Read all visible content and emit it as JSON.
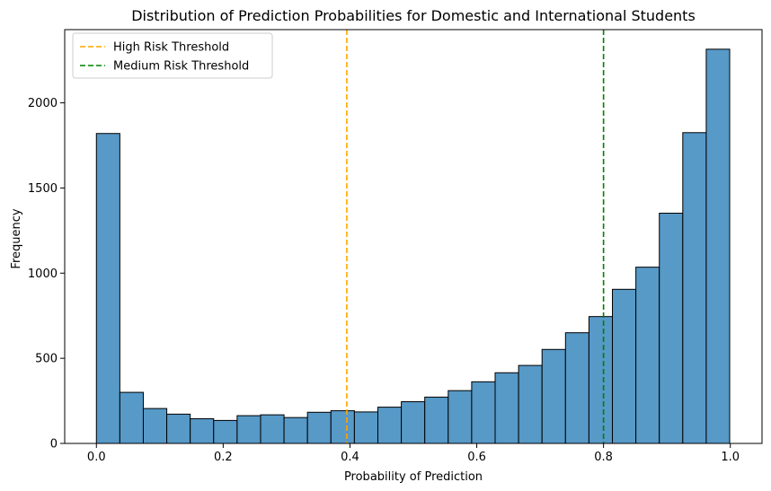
{
  "chart_data": {
    "type": "bar",
    "title": "Distribution of Prediction Probabilities for Domestic and International Students",
    "xlabel": "Probability of Prediction",
    "ylabel": "Frequency",
    "xlim": [
      -0.05,
      1.05
    ],
    "ylim": [
      0,
      2430
    ],
    "bin_start": 0.0,
    "bin_width": 0.037,
    "values": [
      1820,
      300,
      205,
      172,
      145,
      135,
      163,
      168,
      152,
      183,
      192,
      185,
      213,
      245,
      272,
      310,
      362,
      415,
      458,
      552,
      650,
      745,
      905,
      1035,
      1352,
      1825,
      2315
    ],
    "xticks": [
      0.0,
      0.2,
      0.4,
      0.6,
      0.8,
      1.0
    ],
    "xtick_labels": [
      "0.0",
      "0.2",
      "0.4",
      "0.6",
      "0.8",
      "1.0"
    ],
    "yticks": [
      0,
      500,
      1000,
      1500,
      2000
    ],
    "ytick_labels": [
      "0",
      "500",
      "1000",
      "1500",
      "2000"
    ],
    "bar_color": "#5799c7",
    "bar_edge_color": "#000000",
    "thresholds": [
      {
        "name": "High Risk Threshold",
        "x": 0.395,
        "color": "#ffa500"
      },
      {
        "name": "Medium Risk Threshold",
        "x": 0.8,
        "color": "#008000"
      }
    ],
    "legend": "top-left",
    "grid": false
  }
}
